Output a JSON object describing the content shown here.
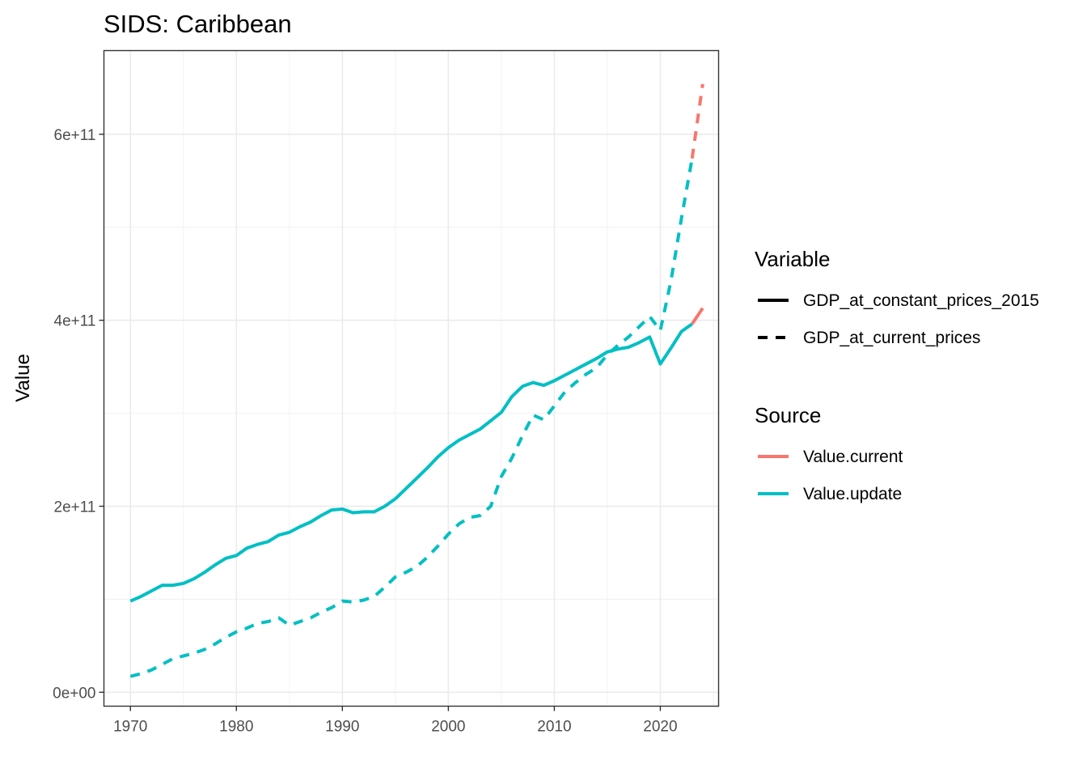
{
  "chart_data": {
    "type": "line",
    "title": "SIDS: Caribbean",
    "xlabel": "",
    "ylabel": "Value",
    "xlim": [
      1967.5,
      2025.5
    ],
    "ylim": [
      -15000000000,
      690000000000
    ],
    "x_ticks": [
      1970,
      1980,
      1990,
      2000,
      2010,
      2020
    ],
    "y_ticks": [
      0,
      200000000000,
      400000000000,
      600000000000
    ],
    "y_tick_labels": [
      "0e+00",
      "2e+11",
      "4e+11",
      "6e+11"
    ],
    "x_minor_ticks": [
      1975,
      1985,
      1995,
      2005,
      2015,
      2025
    ],
    "y_minor_ticks": [
      100000000000,
      300000000000,
      500000000000
    ],
    "grid": true,
    "legend_position": "right",
    "legends": [
      {
        "title": "Variable",
        "items": [
          {
            "label": "GDP_at_constant_prices_2015",
            "linetype": "solid",
            "color": "#000000"
          },
          {
            "label": "GDP_at_current_prices",
            "linetype": "dashed",
            "color": "#000000"
          }
        ]
      },
      {
        "title": "Source",
        "items": [
          {
            "label": "Value.current",
            "linetype": "solid",
            "color": "#F8766D"
          },
          {
            "label": "Value.update",
            "linetype": "solid",
            "color": "#00BFC4"
          }
        ]
      }
    ],
    "series": [
      {
        "variable": "GDP_at_constant_prices_2015",
        "source": "Value.update",
        "color": "#00BFC4",
        "linetype": "solid",
        "x": [
          1970,
          1971,
          1972,
          1973,
          1974,
          1975,
          1976,
          1977,
          1978,
          1979,
          1980,
          1981,
          1982,
          1983,
          1984,
          1985,
          1986,
          1987,
          1988,
          1989,
          1990,
          1991,
          1992,
          1993,
          1994,
          1995,
          1996,
          1997,
          1998,
          1999,
          2000,
          2001,
          2002,
          2003,
          2004,
          2005,
          2006,
          2007,
          2008,
          2009,
          2010,
          2011,
          2012,
          2013,
          2014,
          2015,
          2016,
          2017,
          2018,
          2019,
          2020,
          2021,
          2022,
          2023
        ],
        "y": [
          98000000000,
          103000000000,
          109000000000,
          115000000000,
          115000000000,
          117000000000,
          122000000000,
          129000000000,
          137000000000,
          144000000000,
          147000000000,
          155000000000,
          159000000000,
          162000000000,
          169000000000,
          172000000000,
          178000000000,
          183000000000,
          190000000000,
          196000000000,
          197000000000,
          193000000000,
          194000000000,
          194000000000,
          200000000000,
          208000000000,
          219000000000,
          230000000000,
          241000000000,
          253000000000,
          263000000000,
          271000000000,
          277000000000,
          283000000000,
          292000000000,
          301000000000,
          318000000000,
          329000000000,
          333000000000,
          330000000000,
          335000000000,
          341000000000,
          347000000000,
          353000000000,
          359000000000,
          366000000000,
          369000000000,
          371000000000,
          376000000000,
          382000000000,
          353000000000,
          370000000000,
          388000000000,
          396000000000
        ]
      },
      {
        "variable": "GDP_at_constant_prices_2015",
        "source": "Value.current",
        "color": "#F8766D",
        "linetype": "solid",
        "x": [
          2023,
          2024
        ],
        "y": [
          396000000000,
          413000000000
        ]
      },
      {
        "variable": "GDP_at_current_prices",
        "source": "Value.update",
        "color": "#00BFC4",
        "linetype": "dashed",
        "x": [
          1970,
          1971,
          1972,
          1973,
          1974,
          1975,
          1976,
          1977,
          1978,
          1979,
          1980,
          1981,
          1982,
          1983,
          1984,
          1985,
          1986,
          1987,
          1988,
          1989,
          1990,
          1991,
          1992,
          1993,
          1994,
          1995,
          1996,
          1997,
          1998,
          1999,
          2000,
          2001,
          2002,
          2003,
          2004,
          2005,
          2006,
          2007,
          2008,
          2009,
          2010,
          2011,
          2012,
          2013,
          2014,
          2015,
          2016,
          2017,
          2018,
          2019,
          2020,
          2021,
          2022,
          2023
        ],
        "y": [
          17000000000,
          20000000000,
          24000000000,
          30000000000,
          36000000000,
          39000000000,
          42000000000,
          46000000000,
          52000000000,
          59000000000,
          65000000000,
          69000000000,
          74000000000,
          76000000000,
          80000000000,
          72000000000,
          76000000000,
          80000000000,
          86000000000,
          91000000000,
          98000000000,
          97000000000,
          99000000000,
          103000000000,
          113000000000,
          124000000000,
          129000000000,
          135000000000,
          145000000000,
          157000000000,
          170000000000,
          181000000000,
          188000000000,
          190000000000,
          200000000000,
          232000000000,
          252000000000,
          276000000000,
          298000000000,
          293000000000,
          308000000000,
          323000000000,
          333000000000,
          342000000000,
          349000000000,
          363000000000,
          373000000000,
          382000000000,
          393000000000,
          404000000000,
          389000000000,
          442000000000,
          510000000000,
          574000000000
        ]
      },
      {
        "variable": "GDP_at_current_prices",
        "source": "Value.current",
        "color": "#F8766D",
        "linetype": "dashed",
        "x": [
          2023,
          2024
        ],
        "y": [
          574000000000,
          654000000000
        ]
      }
    ]
  }
}
